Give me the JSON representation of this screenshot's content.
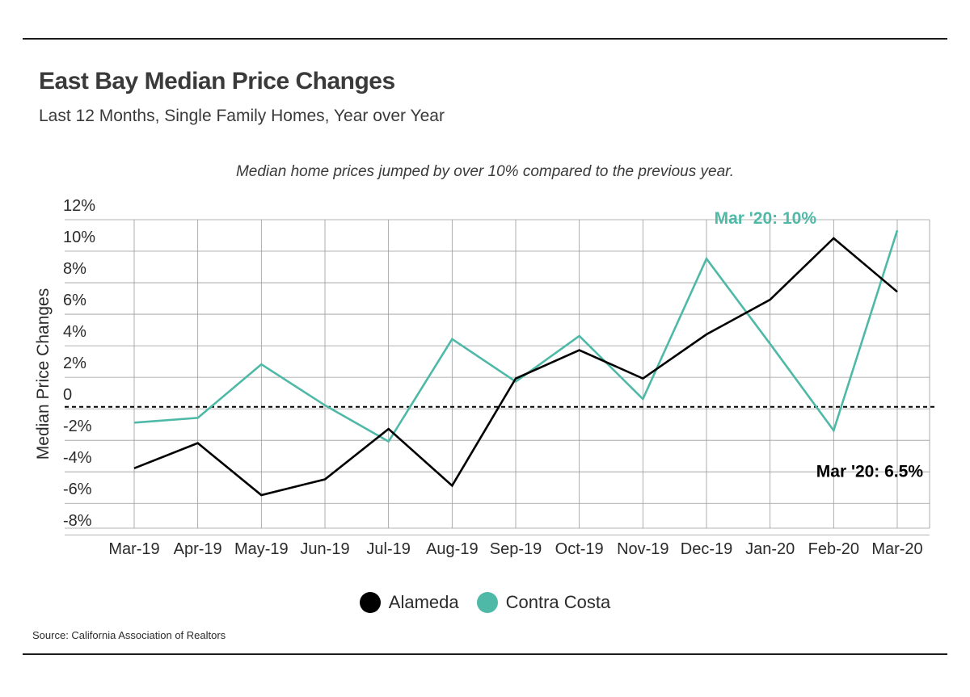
{
  "header": {
    "title": "East Bay Median Price Changes",
    "subtitle": "Last 12 Months, Single Family Homes, Year over Year",
    "note": "Median home prices jumped by over 10% compared to the previous year."
  },
  "footer": {
    "source": "Source:  California Association of Realtors"
  },
  "colors": {
    "alameda": "#000000",
    "contra_costa": "#4fb9a7",
    "grid": "#9a9a9a"
  },
  "chart_data": {
    "type": "line",
    "ylabel": "Median Price Changes",
    "xlabel": "",
    "ylim": [
      -8.5,
      12
    ],
    "y_ticks": [
      12,
      10,
      8,
      6,
      4,
      2,
      0,
      -2,
      -4,
      -6,
      -8
    ],
    "y_tick_labels": [
      "12%",
      "10%",
      "8%",
      "6%",
      "4%",
      "2%",
      "0",
      "-2%",
      "-4%",
      "-6%",
      "-8%"
    ],
    "categories": [
      "Mar-19",
      "Apr-19",
      "May-19",
      "Jun-19",
      "Jul-19",
      "Aug-19",
      "Sep-19",
      "Oct-19",
      "Nov-19",
      "Dec-19",
      "Jan-20",
      "Feb-20",
      "Mar-20"
    ],
    "series": [
      {
        "name": "Alameda",
        "color": "#000000",
        "values": [
          -4.7,
          -3.1,
          -6.4,
          -5.4,
          -2.2,
          -5.8,
          1.0,
          2.8,
          1.0,
          3.8,
          6.0,
          9.9,
          6.5
        ]
      },
      {
        "name": "Contra Costa",
        "color": "#4fb9a7",
        "values": [
          -1.8,
          -1.5,
          1.9,
          -0.7,
          -3.0,
          3.5,
          0.8,
          3.7,
          -0.3,
          8.6,
          3.2,
          -2.3,
          10.4
        ]
      }
    ],
    "reference_line": {
      "y": -0.8,
      "style": "dashed"
    },
    "annotations": [
      {
        "series": "Contra Costa",
        "text": "Mar '20: 10%"
      },
      {
        "series": "Alameda",
        "text": "Mar '20: 6.5%"
      }
    ],
    "grid": true,
    "legend": "bottom-center"
  }
}
